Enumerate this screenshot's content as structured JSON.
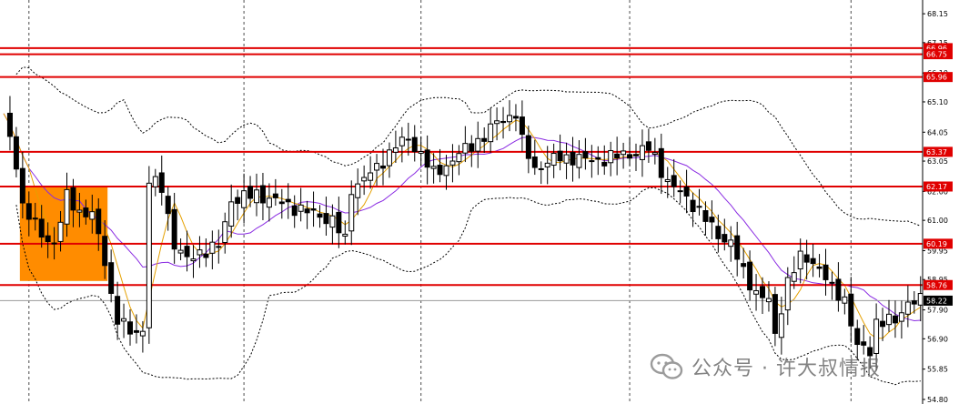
{
  "watermark": {
    "text": "公众号 · 许大叔情报",
    "icon": "wechat-icon"
  },
  "colors": {
    "background": "#ffffff",
    "candle_up": "#000000",
    "candle_up_fill": "#ffffff",
    "candle_down_fill": "#000000",
    "level_line": "#e00000",
    "level_label_bg": "#e00000",
    "current_price_label_bg": "#000000",
    "highlight_zone": "#ff8c00",
    "ma_fast": "#e5a000",
    "ma_slow": "#8a2be2",
    "bollinger": "#000000",
    "grid": "#000000"
  },
  "chart_data": {
    "type": "candlestick",
    "title": "",
    "xlabel": "",
    "ylabel": "",
    "grid": "vertical dashed",
    "ylim": [
      54.8,
      68.5
    ],
    "y_axis_side": "right",
    "y_ticks": [
      "68.15",
      "67.15",
      "66.10",
      "65.10",
      "64.05",
      "63.05",
      "62.00",
      "61.00",
      "59.95",
      "58.95",
      "57.90",
      "56.90",
      "55.85",
      "54.80"
    ],
    "levels": [
      {
        "value": 66.96,
        "label": "66.96"
      },
      {
        "value": 66.75,
        "label": "66.75"
      },
      {
        "value": 65.96,
        "label": "65.96"
      },
      {
        "value": 63.37,
        "label": "63.37"
      },
      {
        "value": 62.17,
        "label": "62.17"
      },
      {
        "value": 60.19,
        "label": "60.19"
      },
      {
        "value": 58.76,
        "label": "58.76"
      }
    ],
    "current_price": {
      "value": 58.22,
      "label": "58.22"
    },
    "highlight_zone": {
      "start_index": 3,
      "end_index": 16,
      "y_top": 62.2,
      "y_bottom": 58.9
    },
    "vertical_grid_at_index": [
      4,
      38,
      66,
      99,
      134
    ]
  }
}
